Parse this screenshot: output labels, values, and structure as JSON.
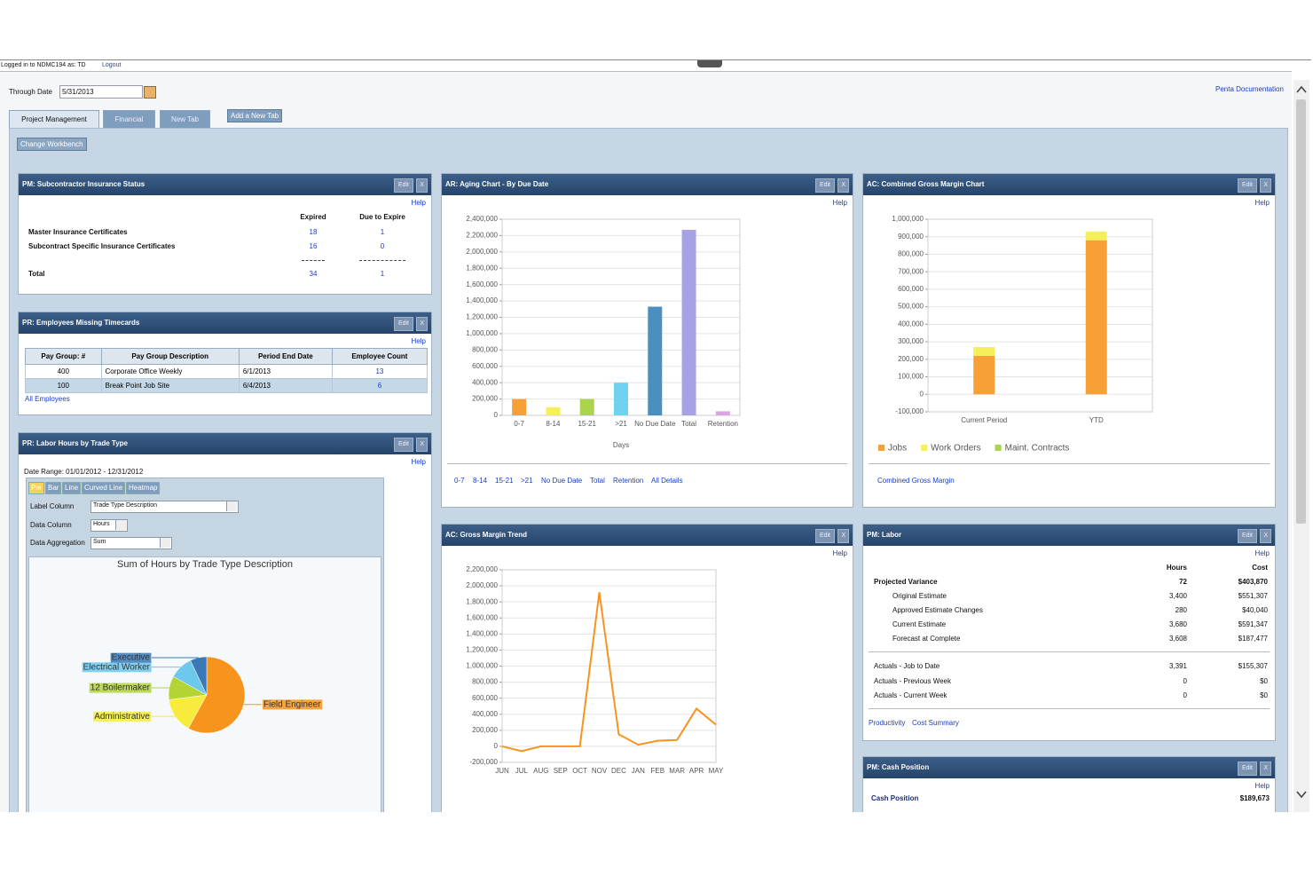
{
  "header": {
    "logged_in": "Logged in to NDMC194 as: TD",
    "logout": "Logout",
    "through_date_label": "Through Date",
    "through_date": "5/31/2013",
    "documentation": "Penta Documentation"
  },
  "tabs": [
    "Project Management",
    "Financial",
    "New Tab"
  ],
  "add_tab": "Add a New Tab",
  "change_workbench": "Change Workbench",
  "buttons": {
    "edit": "Edit",
    "close": "X",
    "help": "Help"
  },
  "insurance": {
    "title": "PM: Subcontractor Insurance Status",
    "columns": [
      "Expired",
      "Due to Expire"
    ],
    "rows": [
      {
        "label": "Master Insurance Certificates",
        "values": [
          18,
          1
        ]
      },
      {
        "label": "Subcontract Specific Insurance Certificates",
        "values": [
          16,
          0
        ]
      }
    ],
    "total": {
      "label": "Total",
      "values": [
        34,
        1
      ]
    }
  },
  "timecards": {
    "title": "PR: Employees Missing Timecards",
    "columns": [
      "Pay Group: #",
      "Pay Group Description",
      "Period End Date",
      "Employee Count"
    ],
    "rows": [
      [
        400,
        "Corporate Office Weekly",
        "6/1/2013",
        13
      ],
      [
        100,
        "Break Point Job Site",
        "6/4/2013",
        6
      ]
    ],
    "link": "All Employees"
  },
  "labor_hours": {
    "title": "PR: Labor Hours by Trade Type",
    "date_range": "Date Range: 01/01/2012 - 12/31/2012",
    "chart_types": [
      "Pie",
      "Bar",
      "Line",
      "Curved Line",
      "Heatmap"
    ],
    "fields": [
      {
        "label": "Label Column",
        "value": "Trade Type Description"
      },
      {
        "label": "Data Column",
        "value": "Hours"
      },
      {
        "label": "Data Aggregation",
        "value": "Sum"
      }
    ],
    "chart": {
      "type": "pie",
      "title": "Sum of Hours by Trade Type Description",
      "categories": [
        "Field Engineer",
        "Administrative",
        "12 Boilermaker",
        "Electrical Worker",
        "Executive"
      ],
      "values": [
        58,
        15,
        10,
        10,
        7
      ],
      "colors": [
        "#f7941d",
        "#f7ec3c",
        "#b4d334",
        "#6cc9ec",
        "#3b78b5"
      ]
    }
  },
  "ar_aging": {
    "title": "AR: Aging Chart - By Due Date",
    "chart": {
      "type": "bar",
      "categories": [
        "0-7",
        "8-14",
        "15-21",
        ">21",
        "No Due Date",
        "Total",
        "Retention"
      ],
      "values": [
        200000,
        100000,
        200000,
        400000,
        1330000,
        2270000,
        50000
      ],
      "colors": [
        "#f7a035",
        "#f5ef5a",
        "#a9d44b",
        "#6fd3f0",
        "#4a8fc0",
        "#a7a2e6",
        "#d9a6e0"
      ],
      "xlabel": "Days",
      "ylim": [
        0,
        2400000
      ],
      "yticks": [
        0,
        {
          "value": 200000,
          "label": "200,000"
        },
        {
          "value": 400000,
          "label": "400,000"
        },
        {
          "value": 600000,
          "label": "600,000"
        },
        {
          "value": 800000,
          "label": "800,000"
        },
        {
          "value": 1000000,
          "label": "1,000,000"
        },
        {
          "value": 1200000,
          "label": "1,200,000"
        },
        {
          "value": 1400000,
          "label": "1,400,000"
        },
        {
          "value": 1600000,
          "label": "1,600,000"
        },
        {
          "value": 1800000,
          "label": "1,800,000"
        },
        {
          "value": 2000000,
          "label": "2,000,000"
        },
        {
          "value": 2200000,
          "label": "2,200,000"
        },
        {
          "value": 2400000,
          "label": "2,400,000"
        }
      ],
      "grid": true
    },
    "links": [
      "0-7",
      "8-14",
      "15-21",
      ">21",
      "No Due Date",
      "Total",
      "Retention",
      "All Details"
    ]
  },
  "gross_margin": {
    "title": "AC: Combined Gross Margin Chart",
    "chart": {
      "type": "stacked_bar",
      "categories": [
        "Current Period",
        "YTD"
      ],
      "series": [
        {
          "name": "Jobs",
          "color": "#f7a035",
          "values": [
            220000,
            880000
          ]
        },
        {
          "name": "Work Orders",
          "color": "#f5ef5a",
          "values": [
            50000,
            50000
          ]
        },
        {
          "name": "Maint. Contracts",
          "color": "#a9d44b",
          "values": [
            0,
            0
          ]
        }
      ],
      "ylim": [
        -100000,
        1000000
      ],
      "yticks": [
        {
          "value": -100000,
          "label": "-100,000"
        },
        0,
        {
          "value": 100000,
          "label": "100,000"
        },
        {
          "value": 200000,
          "label": "200,000"
        },
        {
          "value": 300000,
          "label": "300,000"
        },
        {
          "value": 400000,
          "label": "400,000"
        },
        {
          "value": 500000,
          "label": "500,000"
        },
        {
          "value": 600000,
          "label": "600,000"
        },
        {
          "value": 700000,
          "label": "700,000"
        },
        {
          "value": 800000,
          "label": "800,000"
        },
        {
          "value": 900000,
          "label": "900,000"
        },
        {
          "value": 1000000,
          "label": "1,000,000"
        }
      ],
      "grid": true
    },
    "link": "Combined Gross Margin"
  },
  "gm_trend": {
    "title": "AC: Gross Margin Trend",
    "chart": {
      "type": "line",
      "categories": [
        "JUN",
        "JUL",
        "AUG",
        "SEP",
        "OCT",
        "NOV",
        "DEC",
        "JAN",
        "FEB",
        "MAR",
        "APR",
        "MAY"
      ],
      "values": [
        0,
        -60000,
        0,
        0,
        0,
        1920000,
        150000,
        20000,
        70000,
        80000,
        470000,
        270000
      ],
      "color": "#f7941d",
      "ylim": [
        -200000,
        2200000
      ],
      "yticks": [
        {
          "value": -200000,
          "label": "-200,000"
        },
        0,
        {
          "value": 200000,
          "label": "200,000"
        },
        {
          "value": 400000,
          "label": "400,000"
        },
        {
          "value": 600000,
          "label": "600,000"
        },
        {
          "value": 800000,
          "label": "800,000"
        },
        {
          "value": 1000000,
          "label": "1,000,000"
        },
        {
          "value": 1200000,
          "label": "1,200,000"
        },
        {
          "value": 1400000,
          "label": "1,400,000"
        },
        {
          "value": 1600000,
          "label": "1,600,000"
        },
        {
          "value": 1800000,
          "label": "1,800,000"
        },
        {
          "value": 2000000,
          "label": "2,000,000"
        },
        {
          "value": 2200000,
          "label": "2,200,000"
        }
      ],
      "grid": true
    }
  },
  "pm_labor": {
    "title": "PM: Labor",
    "columns": [
      "Hours",
      "Cost"
    ],
    "rows": [
      {
        "label": "Projected Variance",
        "hours": "72",
        "cost": "$403,870"
      },
      {
        "label": "Original Estimate",
        "hours": "3,400",
        "cost": "$551,307"
      },
      {
        "label": "Approved Estimate Changes",
        "hours": "280",
        "cost": "$40,040"
      },
      {
        "label": "Current Estimate",
        "hours": "3,680",
        "cost": "$591,347"
      },
      {
        "label": "Forecast at Complete",
        "hours": "3,608",
        "cost": "$187,477"
      },
      {
        "label": "Actuals - Job to Date",
        "hours": "3,391",
        "cost": "$155,307"
      },
      {
        "label": "Actuals - Previous Week",
        "hours": "0",
        "cost": "$0"
      },
      {
        "label": "Actuals - Current Week",
        "hours": "0",
        "cost": "$0"
      }
    ],
    "links": [
      "Productivity",
      "Cost Summary"
    ]
  },
  "cash": {
    "title": "PM: Cash Position",
    "label": "Cash Position",
    "value": "$189,673"
  }
}
